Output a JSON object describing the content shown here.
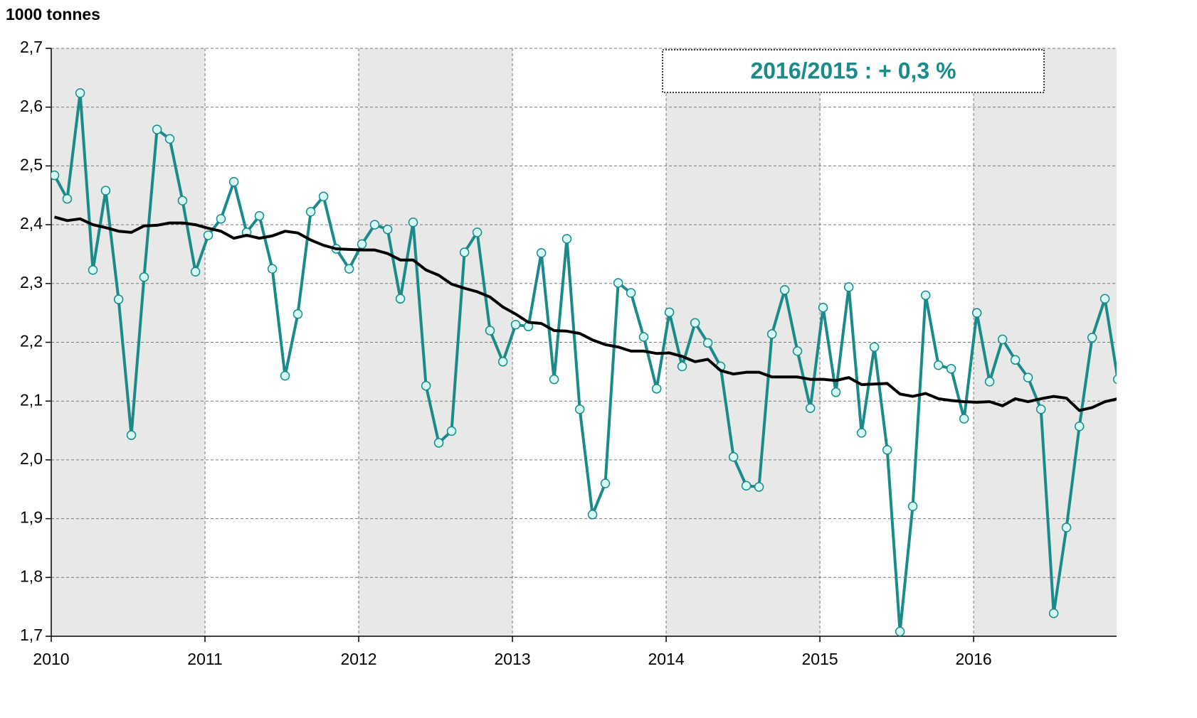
{
  "chart_data": {
    "type": "line",
    "y_label": "1000 tonnes",
    "annotation": "2016/2015 :  + 0,3 %",
    "x": [
      2010.021,
      2010.104,
      2010.188,
      2010.271,
      2010.354,
      2010.438,
      2010.521,
      2010.604,
      2010.688,
      2010.771,
      2010.854,
      2010.938,
      2011.021,
      2011.104,
      2011.188,
      2011.271,
      2011.354,
      2011.438,
      2011.521,
      2011.604,
      2011.688,
      2011.771,
      2011.854,
      2011.938,
      2012.021,
      2012.104,
      2012.188,
      2012.271,
      2012.354,
      2012.438,
      2012.521,
      2012.604,
      2012.688,
      2012.771,
      2012.854,
      2012.938,
      2013.021,
      2013.104,
      2013.188,
      2013.271,
      2013.354,
      2013.438,
      2013.521,
      2013.604,
      2013.688,
      2013.771,
      2013.854,
      2013.938,
      2014.021,
      2014.104,
      2014.188,
      2014.271,
      2014.354,
      2014.438,
      2014.521,
      2014.604,
      2014.688,
      2014.771,
      2014.854,
      2014.938,
      2015.021,
      2015.104,
      2015.188,
      2015.271,
      2015.354,
      2015.438,
      2015.521,
      2015.604,
      2015.688,
      2015.771,
      2015.854,
      2015.938,
      2016.021,
      2016.104,
      2016.188,
      2016.271,
      2016.354,
      2016.438,
      2016.521,
      2016.604,
      2016.688,
      2016.771,
      2016.854,
      2016.938
    ],
    "series": [
      {
        "color": "#1a8a8a",
        "marker_fill": "#d4fbf4",
        "values": [
          2.484,
          2.444,
          2.624,
          2.323,
          2.458,
          2.273,
          2.042,
          2.311,
          2.562,
          2.546,
          2.441,
          2.32,
          2.382,
          2.41,
          2.473,
          2.387,
          2.415,
          2.325,
          2.143,
          2.248,
          2.422,
          2.448,
          2.359,
          2.325,
          2.367,
          2.4,
          2.392,
          2.274,
          2.404,
          2.126,
          2.029,
          2.049,
          2.353,
          2.387,
          2.22,
          2.167,
          2.23,
          2.227,
          2.352,
          2.137,
          2.376,
          2.086,
          1.907,
          1.96,
          2.301,
          2.284,
          2.209,
          2.121,
          2.251,
          2.159,
          2.233,
          2.199,
          2.159,
          2.005,
          1.956,
          1.954,
          2.214,
          2.289,
          2.185,
          2.088,
          2.259,
          2.115,
          2.294,
          2.046,
          2.192,
          2.017,
          1.708,
          1.921,
          2.28,
          2.161,
          2.155,
          2.07,
          2.25,
          2.133,
          2.205,
          2.17,
          2.14,
          2.086,
          1.739,
          1.885,
          2.057,
          2.208,
          2.274,
          2.137
        ]
      },
      {
        "color": "#000000",
        "values": [
          2.413,
          2.407,
          2.41,
          2.4,
          2.395,
          2.389,
          2.387,
          2.398,
          2.399,
          2.403,
          2.403,
          2.4,
          2.394,
          2.389,
          2.377,
          2.382,
          2.377,
          2.381,
          2.389,
          2.386,
          2.374,
          2.365,
          2.359,
          2.358,
          2.357,
          2.357,
          2.351,
          2.34,
          2.34,
          2.323,
          2.314,
          2.299,
          2.292,
          2.286,
          2.277,
          2.26,
          2.248,
          2.234,
          2.232,
          2.22,
          2.219,
          2.215,
          2.204,
          2.196,
          2.192,
          2.185,
          2.185,
          2.181,
          2.182,
          2.176,
          2.167,
          2.171,
          2.152,
          2.146,
          2.149,
          2.149,
          2.141,
          2.141,
          2.141,
          2.137,
          2.137,
          2.135,
          2.14,
          2.128,
          2.129,
          2.13,
          2.112,
          2.108,
          2.113,
          2.104,
          2.101,
          2.099,
          2.098,
          2.099,
          2.092,
          2.104,
          2.099,
          2.104,
          2.108,
          2.105,
          2.084,
          2.089,
          2.099,
          2.104
        ]
      }
    ],
    "xlim": [
      2010,
      2016.93
    ],
    "xticks": [
      2010,
      2011,
      2012,
      2013,
      2014,
      2015,
      2016
    ],
    "ylim": [
      1.7,
      2.7
    ],
    "yticks": [
      {
        "value": 1.7,
        "label": "1,7"
      },
      {
        "value": 1.8,
        "label": "1,8"
      },
      {
        "value": 1.9,
        "label": "1,9"
      },
      {
        "value": 2.0,
        "label": "2,0"
      },
      {
        "value": 2.1,
        "label": "2,1"
      },
      {
        "value": 2.2,
        "label": "2,2"
      },
      {
        "value": 2.3,
        "label": "2,3"
      },
      {
        "value": 2.4,
        "label": "2,4"
      },
      {
        "value": 2.5,
        "label": "2,5"
      },
      {
        "value": 2.6,
        "label": "2,6"
      },
      {
        "value": 2.7,
        "label": "2,7"
      }
    ],
    "grid": true,
    "band_color": "#e8e8e8"
  }
}
